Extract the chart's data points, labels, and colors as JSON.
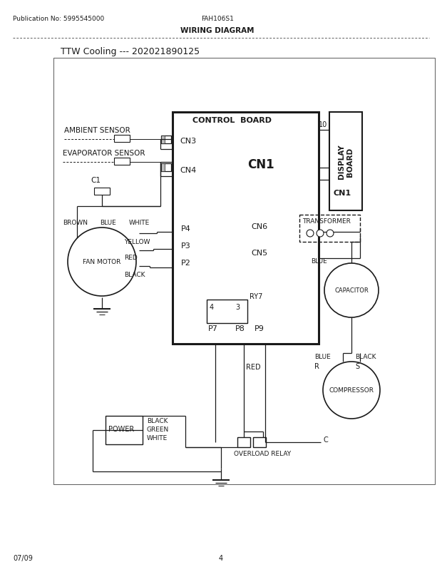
{
  "bg_color": "#ffffff",
  "line_color": "#1a1a1a",
  "text_color": "#1a1a1a",
  "pub_no": "Publication No: 5995545000",
  "model": "FAH106S1",
  "diagram_type": "WIRING DIAGRAM",
  "title": "TTW Cooling --- 202021890125",
  "footer_date": "07/09",
  "footer_page": "4"
}
